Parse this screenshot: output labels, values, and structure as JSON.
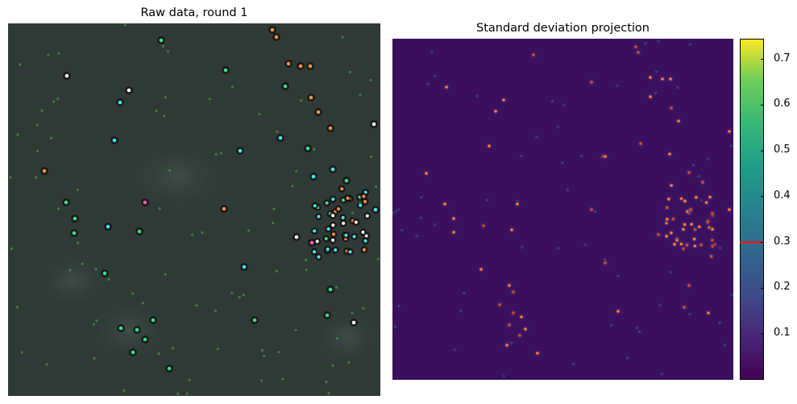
{
  "figure": {
    "left_title": "Raw data, round 1",
    "right_title": "Standard deviation projection"
  },
  "colorbar": {
    "colormap": "viridis",
    "range": [
      0.0,
      0.745
    ],
    "ticks": [
      "0.1",
      "0.2",
      "0.3",
      "0.4",
      "0.5",
      "0.6",
      "0.7"
    ],
    "threshold": 0.3,
    "threshold_color": "#e31a1c"
  },
  "colors": {
    "raw_background": "#2f3a37",
    "projection_background": "#3a0f5e"
  }
}
